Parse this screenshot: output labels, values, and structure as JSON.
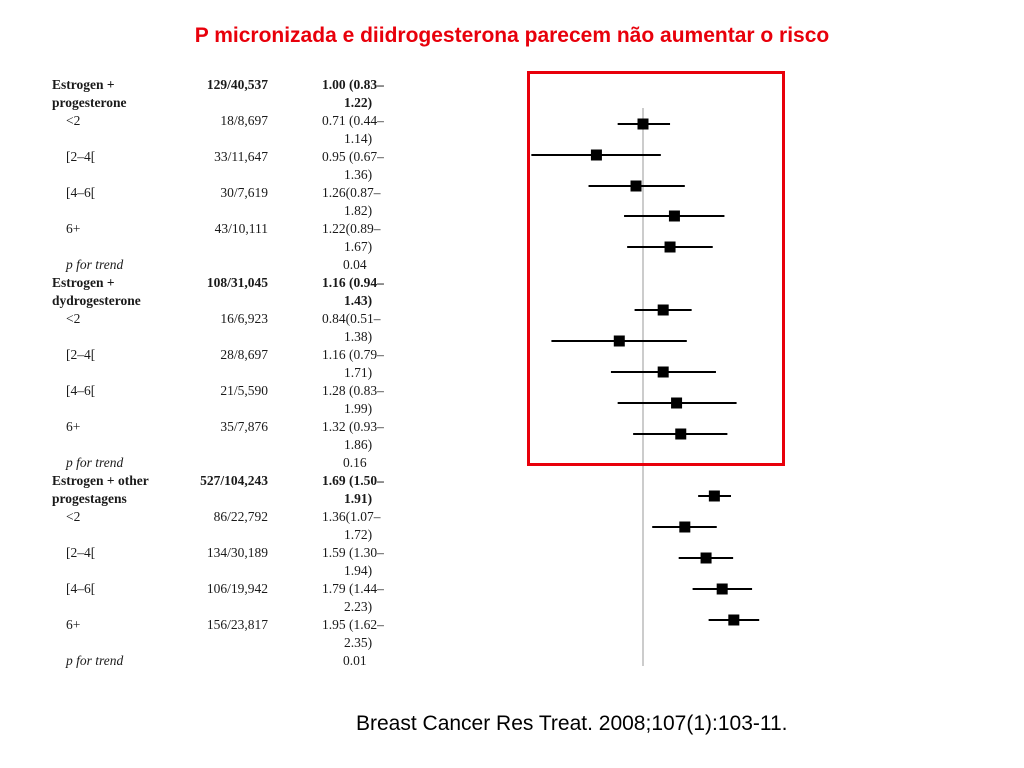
{
  "slide": {
    "title": "P micronizada e diidrogesterona parecem não aumentar o risco",
    "citation": "Breast Cancer Res Treat. 2008;107(1):103-11."
  },
  "table": {
    "rows": [
      {
        "label": "Estrogen +",
        "label2": "progesterone",
        "count": "129/40,537",
        "ci": "1.00 (0.83–",
        "ci2": "1.22)",
        "bold": true
      },
      {
        "label": "<2",
        "count": "18/8,697",
        "ci": "0.71 (0.44–",
        "ci2": "1.14)"
      },
      {
        "label": "[2–4[",
        "count": "33/11,647",
        "ci": "0.95 (0.67–",
        "ci2": "1.36)"
      },
      {
        "label": "[4–6[",
        "count": "30/7,619",
        "ci": "1.26(0.87–",
        "ci2": "1.82)"
      },
      {
        "label": "6+",
        "count": "43/10,111",
        "ci": "1.22(0.89–",
        "ci2": "1.67)"
      },
      {
        "label": "p for trend",
        "count": "",
        "ci": "0.04",
        "ci2": "",
        "italic": true
      },
      {
        "label": "Estrogen +",
        "label2": "dydrogesterone",
        "count": "108/31,045",
        "ci": "1.16 (0.94–",
        "ci2": "1.43)",
        "bold": true
      },
      {
        "label": "<2",
        "count": "16/6,923",
        "ci": "0.84(0.51–",
        "ci2": "1.38)"
      },
      {
        "label": "[2–4[",
        "count": "28/8,697",
        "ci": "1.16 (0.79–",
        "ci2": "1.71)"
      },
      {
        "label": "[4–6[",
        "count": "21/5,590",
        "ci": "1.28 (0.83–",
        "ci2": "1.99)"
      },
      {
        "label": "6+",
        "count": "35/7,876",
        "ci": "1.32 (0.93–",
        "ci2": "1.86)"
      },
      {
        "label": "p for trend",
        "count": "",
        "ci": "0.16",
        "ci2": "",
        "italic": true
      },
      {
        "label": "Estrogen + other",
        "label2": "progestagens",
        "count": "527/104,243",
        "ci": "1.69 (1.50–",
        "ci2": "1.91)",
        "bold": true
      },
      {
        "label": "<2",
        "count": "86/22,792",
        "ci": "1.36(1.07–",
        "ci2": "1.72)"
      },
      {
        "label": "[2–4[",
        "count": "134/30,189",
        "ci": "1.59 (1.30–",
        "ci2": "1.94)"
      },
      {
        "label": "[4–6[",
        "count": "106/19,942",
        "ci": "1.79 (1.44–",
        "ci2": "2.23)"
      },
      {
        "label": "6+",
        "count": "156/23,817",
        "ci": "1.95 (1.62–",
        "ci2": "2.35)"
      },
      {
        "label": "p for trend",
        "count": "",
        "ci": "0.01",
        "ci2": "",
        "italic": true
      }
    ]
  },
  "chart_data": {
    "type": "forest",
    "reference_line": 1.0,
    "scale": "log",
    "highlight_box_color": "#e8000b",
    "marker_color": "#000000",
    "reference_line_color": "#bbbbbb",
    "highlighted_groups": [
      "Estrogen + progesterone",
      "Estrogen + dydrogesterone"
    ],
    "points": [
      {
        "group": "Estrogen + progesterone",
        "category": "overall",
        "hr": 1.0,
        "lo": 0.83,
        "hi": 1.22
      },
      {
        "group": "Estrogen + progesterone",
        "category": "<2",
        "hr": 0.71,
        "lo": 0.44,
        "hi": 1.14
      },
      {
        "group": "Estrogen + progesterone",
        "category": "[2–4[",
        "hr": 0.95,
        "lo": 0.67,
        "hi": 1.36
      },
      {
        "group": "Estrogen + progesterone",
        "category": "[4–6[",
        "hr": 1.26,
        "lo": 0.87,
        "hi": 1.82
      },
      {
        "group": "Estrogen + progesterone",
        "category": "6+",
        "hr": 1.22,
        "lo": 0.89,
        "hi": 1.67
      },
      {
        "group": "Estrogen + dydrogesterone",
        "category": "overall",
        "hr": 1.16,
        "lo": 0.94,
        "hi": 1.43
      },
      {
        "group": "Estrogen + dydrogesterone",
        "category": "<2",
        "hr": 0.84,
        "lo": 0.51,
        "hi": 1.38
      },
      {
        "group": "Estrogen + dydrogesterone",
        "category": "[2–4[",
        "hr": 1.16,
        "lo": 0.79,
        "hi": 1.71
      },
      {
        "group": "Estrogen + dydrogesterone",
        "category": "[4–6[",
        "hr": 1.28,
        "lo": 0.83,
        "hi": 1.99
      },
      {
        "group": "Estrogen + dydrogesterone",
        "category": "6+",
        "hr": 1.32,
        "lo": 0.93,
        "hi": 1.86
      },
      {
        "group": "Estrogen + other progestagens",
        "category": "overall",
        "hr": 1.69,
        "lo": 1.5,
        "hi": 1.91
      },
      {
        "group": "Estrogen + other progestagens",
        "category": "<2",
        "hr": 1.36,
        "lo": 1.07,
        "hi": 1.72
      },
      {
        "group": "Estrogen + other progestagens",
        "category": "[2–4[",
        "hr": 1.59,
        "lo": 1.3,
        "hi": 1.94
      },
      {
        "group": "Estrogen + other progestagens",
        "category": "[4–6[",
        "hr": 1.79,
        "lo": 1.44,
        "hi": 2.23
      },
      {
        "group": "Estrogen + other progestagens",
        "category": "6+",
        "hr": 1.95,
        "lo": 1.62,
        "hi": 2.35
      }
    ]
  }
}
